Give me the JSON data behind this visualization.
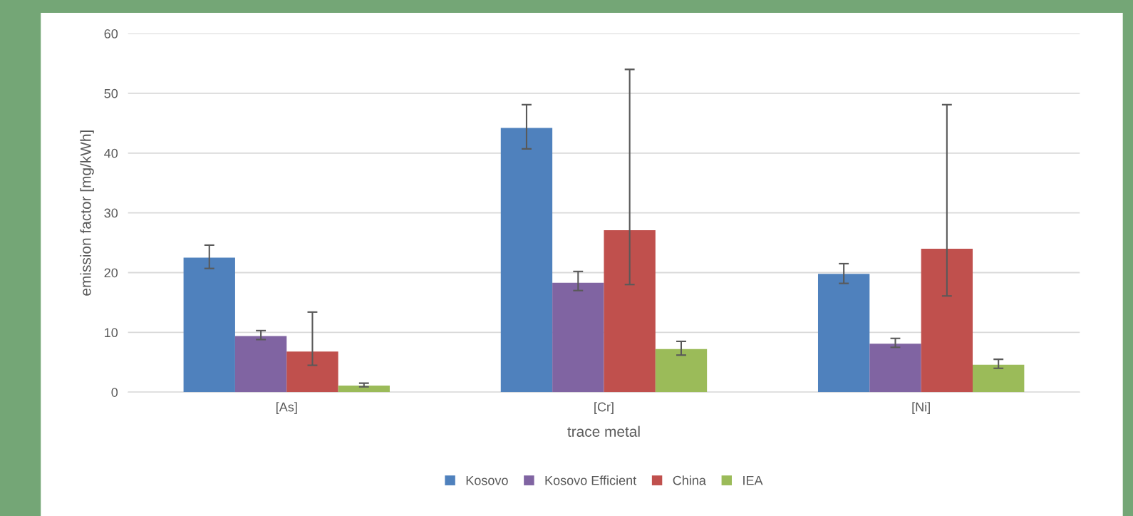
{
  "chart_data": {
    "type": "bar",
    "xlabel": "trace metal",
    "ylabel": "emission factor [mg/kWh]",
    "categories": [
      "[As]",
      "[Cr]",
      "[Ni]"
    ],
    "series": [
      {
        "name": "Kosovo",
        "color": "#4f81bd",
        "values": [
          22.5,
          44.2,
          19.8
        ],
        "errors": [
          [
            20.7,
            24.6
          ],
          [
            40.7,
            48.1
          ],
          [
            18.2,
            21.5
          ]
        ]
      },
      {
        "name": "Kosovo Efficient",
        "color": "#8064a2",
        "values": [
          9.4,
          18.3,
          8.1
        ],
        "errors": [
          [
            8.8,
            10.3
          ],
          [
            17.0,
            20.2
          ],
          [
            7.5,
            9.0
          ]
        ]
      },
      {
        "name": "China",
        "color": "#c0504d",
        "values": [
          6.8,
          27.1,
          24.0
        ],
        "errors": [
          [
            4.5,
            13.4
          ],
          [
            18.0,
            54.0
          ],
          [
            16.1,
            48.1
          ]
        ]
      },
      {
        "name": "IEA",
        "color": "#9bbb59",
        "values": [
          1.1,
          7.2,
          4.6
        ],
        "errors": [
          [
            0.9,
            1.5
          ],
          [
            6.2,
            8.5
          ],
          [
            4.0,
            5.5
          ]
        ]
      }
    ],
    "ylim": [
      0,
      60
    ],
    "yticks": [
      0,
      10,
      20,
      30,
      40,
      50,
      60
    ],
    "grid": "y",
    "legend": "bottom"
  }
}
